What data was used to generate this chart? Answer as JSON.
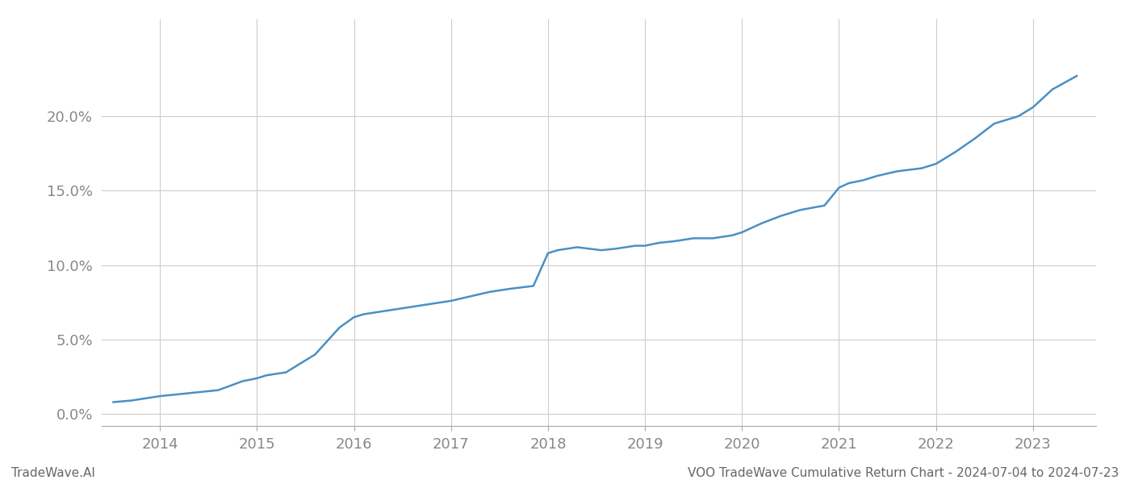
{
  "title": "VOO TradeWave Cumulative Return Chart - 2024-07-04 to 2024-07-23",
  "watermark": "TradeWave.AI",
  "line_color": "#4a90c4",
  "line_width": 1.8,
  "background_color": "#ffffff",
  "grid_color": "#cccccc",
  "tick_color": "#888888",
  "x_years": [
    2013.52,
    2013.7,
    2014.0,
    2014.3,
    2014.6,
    2014.85,
    2015.0,
    2015.1,
    2015.3,
    2015.6,
    2015.85,
    2016.0,
    2016.1,
    2016.3,
    2016.5,
    2016.7,
    2016.9,
    2017.0,
    2017.2,
    2017.4,
    2017.6,
    2017.85,
    2018.0,
    2018.1,
    2018.3,
    2018.55,
    2018.7,
    2018.9,
    2019.0,
    2019.15,
    2019.3,
    2019.5,
    2019.7,
    2019.9,
    2020.0,
    2020.2,
    2020.4,
    2020.6,
    2020.85,
    2021.0,
    2021.1,
    2021.25,
    2021.4,
    2021.6,
    2021.85,
    2022.0,
    2022.2,
    2022.4,
    2022.6,
    2022.85,
    2023.0,
    2023.2,
    2023.45
  ],
  "y_values": [
    0.008,
    0.009,
    0.012,
    0.014,
    0.016,
    0.022,
    0.024,
    0.026,
    0.028,
    0.04,
    0.058,
    0.065,
    0.067,
    0.069,
    0.071,
    0.073,
    0.075,
    0.076,
    0.079,
    0.082,
    0.084,
    0.086,
    0.108,
    0.11,
    0.112,
    0.11,
    0.111,
    0.113,
    0.113,
    0.115,
    0.116,
    0.118,
    0.118,
    0.12,
    0.122,
    0.128,
    0.133,
    0.137,
    0.14,
    0.152,
    0.155,
    0.157,
    0.16,
    0.163,
    0.165,
    0.168,
    0.176,
    0.185,
    0.195,
    0.2,
    0.206,
    0.218,
    0.227
  ],
  "xlim": [
    2013.4,
    2023.65
  ],
  "ylim": [
    -0.008,
    0.265
  ],
  "yticks": [
    0.0,
    0.05,
    0.1,
    0.15,
    0.2
  ],
  "ytick_labels": [
    "0.0%",
    "5.0%",
    "10.0%",
    "15.0%",
    "20.0%"
  ],
  "xtick_years": [
    2014,
    2015,
    2016,
    2017,
    2018,
    2019,
    2020,
    2021,
    2022,
    2023
  ],
  "figsize": [
    14.0,
    6.0
  ],
  "dpi": 100
}
